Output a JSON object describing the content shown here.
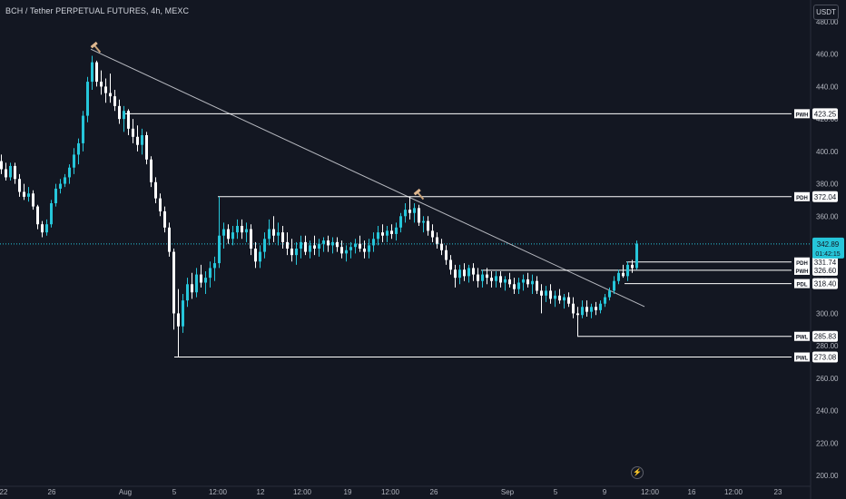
{
  "header": {
    "symbol_title": "BCH / Tether PERPETUAL FUTURES, 4h, MEXC",
    "currency_button": "USDT"
  },
  "colors": {
    "background": "#131722",
    "up": "#26c6da",
    "down": "#ffffff",
    "levels": "#ffffff",
    "trendline": "#b7b9c0",
    "last_price_bg": "#26c6da",
    "axis_text": "#b2b5be"
  },
  "icons": [
    "hammer-icon",
    "hammer-icon",
    "lightning-icon"
  ],
  "chart_data": {
    "type": "candlestick",
    "x_axis_labels": [
      "22",
      "26",
      "Aug",
      "5",
      "12:00",
      "12",
      "12:00",
      "19",
      "12:00",
      "26",
      "Sep",
      "5",
      "9",
      "12:00",
      "16",
      "12:00",
      "23"
    ],
    "y_axis_labels": [
      200,
      220,
      240,
      260,
      280,
      300,
      320,
      340,
      360,
      380,
      400,
      420,
      440,
      460,
      480
    ],
    "ylim": [
      196,
      484
    ],
    "last_price": {
      "value": "342.89",
      "countdown": "01:42:15",
      "value_num": 342.89
    },
    "levels": [
      {
        "label": "PWH",
        "value": "423.25",
        "value_num": 423.25,
        "start_time": 138
      },
      {
        "label": "PDH",
        "value": "372.04",
        "value_num": 372.04,
        "start_time": 240
      },
      {
        "label": "PDH",
        "value": "331.74",
        "value_num": 331.74,
        "start_time": 690
      },
      {
        "label": "PWH",
        "value": "326.60",
        "value_num": 326.6,
        "start_time": 530
      },
      {
        "label": "PDL",
        "value": "318.40",
        "value_num": 318.4,
        "start_time": 688
      },
      {
        "label": "PWL",
        "value": "285.83",
        "value_num": 285.83,
        "start_time": 636
      },
      {
        "label": "PWL",
        "value": "273.08",
        "value_num": 273.08,
        "start_time": 192
      }
    ],
    "trendline": {
      "start": {
        "time": 100,
        "price": 463.1
      },
      "end": {
        "time": 710,
        "price": 304.2
      }
    },
    "candles": [
      {
        "t": 0,
        "o": 394,
        "h": 398,
        "l": 386,
        "c": 389
      },
      {
        "t": 5,
        "o": 389,
        "h": 393,
        "l": 382,
        "c": 384
      },
      {
        "t": 10,
        "o": 384,
        "h": 393,
        "l": 382,
        "c": 391
      },
      {
        "t": 15,
        "o": 391,
        "h": 393,
        "l": 380,
        "c": 383
      },
      {
        "t": 20,
        "o": 383,
        "h": 386,
        "l": 372,
        "c": 375
      },
      {
        "t": 25,
        "o": 375,
        "h": 380,
        "l": 370,
        "c": 372
      },
      {
        "t": 30,
        "o": 372,
        "h": 378,
        "l": 369,
        "c": 374
      },
      {
        "t": 35,
        "o": 374,
        "h": 376,
        "l": 364,
        "c": 366
      },
      {
        "t": 40,
        "o": 366,
        "h": 367,
        "l": 352,
        "c": 355
      },
      {
        "t": 45,
        "o": 355,
        "h": 357,
        "l": 347,
        "c": 350
      },
      {
        "t": 50,
        "o": 350,
        "h": 358,
        "l": 348,
        "c": 355
      },
      {
        "t": 55,
        "o": 355,
        "h": 370,
        "l": 353,
        "c": 368
      },
      {
        "t": 60,
        "o": 368,
        "h": 380,
        "l": 366,
        "c": 377
      },
      {
        "t": 65,
        "o": 377,
        "h": 383,
        "l": 374,
        "c": 380
      },
      {
        "t": 70,
        "o": 380,
        "h": 386,
        "l": 378,
        "c": 384
      },
      {
        "t": 75,
        "o": 384,
        "h": 392,
        "l": 380,
        "c": 390
      },
      {
        "t": 80,
        "o": 390,
        "h": 402,
        "l": 386,
        "c": 398
      },
      {
        "t": 85,
        "o": 398,
        "h": 408,
        "l": 392,
        "c": 405
      },
      {
        "t": 90,
        "o": 405,
        "h": 425,
        "l": 400,
        "c": 422
      },
      {
        "t": 95,
        "o": 422,
        "h": 446,
        "l": 418,
        "c": 443
      },
      {
        "t": 100,
        "o": 443,
        "h": 459,
        "l": 438,
        "c": 455
      },
      {
        "t": 105,
        "o": 455,
        "h": 456,
        "l": 440,
        "c": 443
      },
      {
        "t": 110,
        "o": 443,
        "h": 450,
        "l": 435,
        "c": 440
      },
      {
        "t": 115,
        "o": 440,
        "h": 445,
        "l": 430,
        "c": 436
      },
      {
        "t": 120,
        "o": 436,
        "h": 448,
        "l": 430,
        "c": 434
      },
      {
        "t": 125,
        "o": 434,
        "h": 438,
        "l": 425,
        "c": 428
      },
      {
        "t": 130,
        "o": 428,
        "h": 432,
        "l": 417,
        "c": 420
      },
      {
        "t": 135,
        "o": 420,
        "h": 428,
        "l": 412,
        "c": 425
      },
      {
        "t": 140,
        "o": 425,
        "h": 426,
        "l": 410,
        "c": 414
      },
      {
        "t": 145,
        "o": 414,
        "h": 420,
        "l": 405,
        "c": 409
      },
      {
        "t": 150,
        "o": 409,
        "h": 416,
        "l": 400,
        "c": 404
      },
      {
        "t": 155,
        "o": 404,
        "h": 414,
        "l": 398,
        "c": 410
      },
      {
        "t": 160,
        "o": 410,
        "h": 412,
        "l": 392,
        "c": 395
      },
      {
        "t": 165,
        "o": 395,
        "h": 397,
        "l": 378,
        "c": 381
      },
      {
        "t": 170,
        "o": 381,
        "h": 384,
        "l": 368,
        "c": 371
      },
      {
        "t": 175,
        "o": 371,
        "h": 374,
        "l": 360,
        "c": 363
      },
      {
        "t": 180,
        "o": 363,
        "h": 366,
        "l": 350,
        "c": 353
      },
      {
        "t": 185,
        "o": 353,
        "h": 356,
        "l": 335,
        "c": 338
      },
      {
        "t": 190,
        "o": 338,
        "h": 340,
        "l": 290,
        "c": 300
      },
      {
        "t": 195,
        "o": 300,
        "h": 315,
        "l": 273,
        "c": 292
      },
      {
        "t": 200,
        "o": 292,
        "h": 312,
        "l": 288,
        "c": 308
      },
      {
        "t": 205,
        "o": 308,
        "h": 322,
        "l": 304,
        "c": 318
      },
      {
        "t": 210,
        "o": 318,
        "h": 325,
        "l": 309,
        "c": 313
      },
      {
        "t": 215,
        "o": 313,
        "h": 328,
        "l": 310,
        "c": 324
      },
      {
        "t": 220,
        "o": 324,
        "h": 330,
        "l": 316,
        "c": 319
      },
      {
        "t": 225,
        "o": 319,
        "h": 326,
        "l": 312,
        "c": 322
      },
      {
        "t": 230,
        "o": 322,
        "h": 332,
        "l": 316,
        "c": 328
      },
      {
        "t": 235,
        "o": 328,
        "h": 335,
        "l": 320,
        "c": 331
      },
      {
        "t": 240,
        "o": 331,
        "h": 372,
        "l": 328,
        "c": 348
      },
      {
        "t": 245,
        "o": 348,
        "h": 356,
        "l": 340,
        "c": 352
      },
      {
        "t": 250,
        "o": 352,
        "h": 355,
        "l": 343,
        "c": 346
      },
      {
        "t": 255,
        "o": 346,
        "h": 354,
        "l": 342,
        "c": 350
      },
      {
        "t": 260,
        "o": 350,
        "h": 358,
        "l": 346,
        "c": 354
      },
      {
        "t": 265,
        "o": 354,
        "h": 358,
        "l": 346,
        "c": 350
      },
      {
        "t": 270,
        "o": 350,
        "h": 356,
        "l": 344,
        "c": 352
      },
      {
        "t": 275,
        "o": 352,
        "h": 355,
        "l": 336,
        "c": 340
      },
      {
        "t": 280,
        "o": 340,
        "h": 344,
        "l": 328,
        "c": 332
      },
      {
        "t": 285,
        "o": 332,
        "h": 342,
        "l": 328,
        "c": 338
      },
      {
        "t": 290,
        "o": 338,
        "h": 350,
        "l": 334,
        "c": 346
      },
      {
        "t": 295,
        "o": 346,
        "h": 358,
        "l": 342,
        "c": 352
      },
      {
        "t": 300,
        "o": 352,
        "h": 360,
        "l": 344,
        "c": 348
      },
      {
        "t": 305,
        "o": 348,
        "h": 356,
        "l": 342,
        "c": 350
      },
      {
        "t": 310,
        "o": 350,
        "h": 354,
        "l": 340,
        "c": 344
      },
      {
        "t": 315,
        "o": 344,
        "h": 350,
        "l": 336,
        "c": 340
      },
      {
        "t": 320,
        "o": 340,
        "h": 346,
        "l": 332,
        "c": 336
      },
      {
        "t": 325,
        "o": 336,
        "h": 344,
        "l": 330,
        "c": 340
      },
      {
        "t": 330,
        "o": 340,
        "h": 348,
        "l": 334,
        "c": 344
      },
      {
        "t": 335,
        "o": 344,
        "h": 348,
        "l": 336,
        "c": 338
      },
      {
        "t": 340,
        "o": 338,
        "h": 345,
        "l": 334,
        "c": 342
      },
      {
        "t": 345,
        "o": 342,
        "h": 348,
        "l": 336,
        "c": 340
      },
      {
        "t": 350,
        "o": 340,
        "h": 346,
        "l": 335,
        "c": 343
      },
      {
        "t": 355,
        "o": 343,
        "h": 347,
        "l": 338,
        "c": 345
      },
      {
        "t": 360,
        "o": 345,
        "h": 348,
        "l": 338,
        "c": 342
      },
      {
        "t": 365,
        "o": 342,
        "h": 347,
        "l": 337,
        "c": 344
      },
      {
        "t": 370,
        "o": 344,
        "h": 347,
        "l": 338,
        "c": 341
      },
      {
        "t": 375,
        "o": 341,
        "h": 345,
        "l": 334,
        "c": 337
      },
      {
        "t": 380,
        "o": 337,
        "h": 342,
        "l": 332,
        "c": 339
      },
      {
        "t": 385,
        "o": 339,
        "h": 344,
        "l": 334,
        "c": 341
      },
      {
        "t": 390,
        "o": 341,
        "h": 346,
        "l": 337,
        "c": 343
      },
      {
        "t": 395,
        "o": 343,
        "h": 348,
        "l": 338,
        "c": 340
      },
      {
        "t": 400,
        "o": 340,
        "h": 345,
        "l": 334,
        "c": 338
      },
      {
        "t": 405,
        "o": 338,
        "h": 346,
        "l": 334,
        "c": 342
      },
      {
        "t": 410,
        "o": 342,
        "h": 350,
        "l": 338,
        "c": 346
      },
      {
        "t": 415,
        "o": 346,
        "h": 354,
        "l": 342,
        "c": 350
      },
      {
        "t": 420,
        "o": 350,
        "h": 355,
        "l": 344,
        "c": 348
      },
      {
        "t": 425,
        "o": 348,
        "h": 354,
        "l": 344,
        "c": 351
      },
      {
        "t": 430,
        "o": 351,
        "h": 355,
        "l": 346,
        "c": 349
      },
      {
        "t": 435,
        "o": 349,
        "h": 356,
        "l": 345,
        "c": 353
      },
      {
        "t": 440,
        "o": 353,
        "h": 362,
        "l": 350,
        "c": 360
      },
      {
        "t": 445,
        "o": 360,
        "h": 368,
        "l": 356,
        "c": 364
      },
      {
        "t": 450,
        "o": 364,
        "h": 372,
        "l": 358,
        "c": 362
      },
      {
        "t": 455,
        "o": 362,
        "h": 368,
        "l": 356,
        "c": 365
      },
      {
        "t": 460,
        "o": 365,
        "h": 367,
        "l": 354,
        "c": 356
      },
      {
        "t": 465,
        "o": 356,
        "h": 360,
        "l": 350,
        "c": 357
      },
      {
        "t": 470,
        "o": 357,
        "h": 360,
        "l": 348,
        "c": 351
      },
      {
        "t": 475,
        "o": 351,
        "h": 355,
        "l": 344,
        "c": 347
      },
      {
        "t": 480,
        "o": 347,
        "h": 350,
        "l": 340,
        "c": 343
      },
      {
        "t": 485,
        "o": 343,
        "h": 346,
        "l": 336,
        "c": 339
      },
      {
        "t": 490,
        "o": 339,
        "h": 342,
        "l": 330,
        "c": 333
      },
      {
        "t": 495,
        "o": 333,
        "h": 336,
        "l": 324,
        "c": 327
      },
      {
        "t": 500,
        "o": 327,
        "h": 330,
        "l": 316,
        "c": 322
      },
      {
        "t": 505,
        "o": 322,
        "h": 330,
        "l": 318,
        "c": 327
      },
      {
        "t": 510,
        "o": 327,
        "h": 331,
        "l": 320,
        "c": 323
      },
      {
        "t": 515,
        "o": 323,
        "h": 330,
        "l": 319,
        "c": 328
      },
      {
        "t": 520,
        "o": 328,
        "h": 331,
        "l": 320,
        "c": 324
      },
      {
        "t": 525,
        "o": 324,
        "h": 328,
        "l": 316,
        "c": 320
      },
      {
        "t": 530,
        "o": 320,
        "h": 327,
        "l": 316,
        "c": 324
      },
      {
        "t": 535,
        "o": 324,
        "h": 328,
        "l": 318,
        "c": 322
      },
      {
        "t": 540,
        "o": 322,
        "h": 326,
        "l": 316,
        "c": 320
      },
      {
        "t": 545,
        "o": 320,
        "h": 326,
        "l": 316,
        "c": 323
      },
      {
        "t": 550,
        "o": 323,
        "h": 326,
        "l": 316,
        "c": 319
      },
      {
        "t": 555,
        "o": 319,
        "h": 323,
        "l": 314,
        "c": 321
      },
      {
        "t": 560,
        "o": 321,
        "h": 325,
        "l": 316,
        "c": 318
      },
      {
        "t": 565,
        "o": 318,
        "h": 322,
        "l": 312,
        "c": 315
      },
      {
        "t": 570,
        "o": 315,
        "h": 322,
        "l": 312,
        "c": 319
      },
      {
        "t": 575,
        "o": 319,
        "h": 324,
        "l": 314,
        "c": 321
      },
      {
        "t": 580,
        "o": 321,
        "h": 325,
        "l": 316,
        "c": 318
      },
      {
        "t": 585,
        "o": 318,
        "h": 324,
        "l": 312,
        "c": 320
      },
      {
        "t": 590,
        "o": 320,
        "h": 323,
        "l": 312,
        "c": 314
      },
      {
        "t": 595,
        "o": 314,
        "h": 318,
        "l": 300,
        "c": 311
      },
      {
        "t": 600,
        "o": 311,
        "h": 317,
        "l": 307,
        "c": 314
      },
      {
        "t": 605,
        "o": 314,
        "h": 318,
        "l": 306,
        "c": 309
      },
      {
        "t": 610,
        "o": 309,
        "h": 314,
        "l": 304,
        "c": 311
      },
      {
        "t": 615,
        "o": 311,
        "h": 315,
        "l": 306,
        "c": 308
      },
      {
        "t": 620,
        "o": 308,
        "h": 312,
        "l": 303,
        "c": 310
      },
      {
        "t": 625,
        "o": 310,
        "h": 313,
        "l": 304,
        "c": 306
      },
      {
        "t": 630,
        "o": 306,
        "h": 310,
        "l": 297,
        "c": 300
      },
      {
        "t": 635,
        "o": 300,
        "h": 304,
        "l": 286,
        "c": 299
      },
      {
        "t": 640,
        "o": 299,
        "h": 308,
        "l": 297,
        "c": 304
      },
      {
        "t": 645,
        "o": 304,
        "h": 308,
        "l": 298,
        "c": 301
      },
      {
        "t": 650,
        "o": 301,
        "h": 306,
        "l": 297,
        "c": 304
      },
      {
        "t": 655,
        "o": 304,
        "h": 307,
        "l": 299,
        "c": 302
      },
      {
        "t": 660,
        "o": 302,
        "h": 308,
        "l": 300,
        "c": 306
      },
      {
        "t": 665,
        "o": 306,
        "h": 312,
        "l": 304,
        "c": 310
      },
      {
        "t": 670,
        "o": 310,
        "h": 316,
        "l": 308,
        "c": 314
      },
      {
        "t": 675,
        "o": 314,
        "h": 323,
        "l": 312,
        "c": 320
      },
      {
        "t": 680,
        "o": 320,
        "h": 327,
        "l": 318,
        "c": 325
      },
      {
        "t": 685,
        "o": 325,
        "h": 330,
        "l": 322,
        "c": 323
      },
      {
        "t": 690,
        "o": 323,
        "h": 332,
        "l": 320,
        "c": 330
      },
      {
        "t": 695,
        "o": 330,
        "h": 333,
        "l": 325,
        "c": 328
      },
      {
        "t": 700,
        "o": 328,
        "h": 345,
        "l": 327,
        "c": 343
      }
    ]
  }
}
